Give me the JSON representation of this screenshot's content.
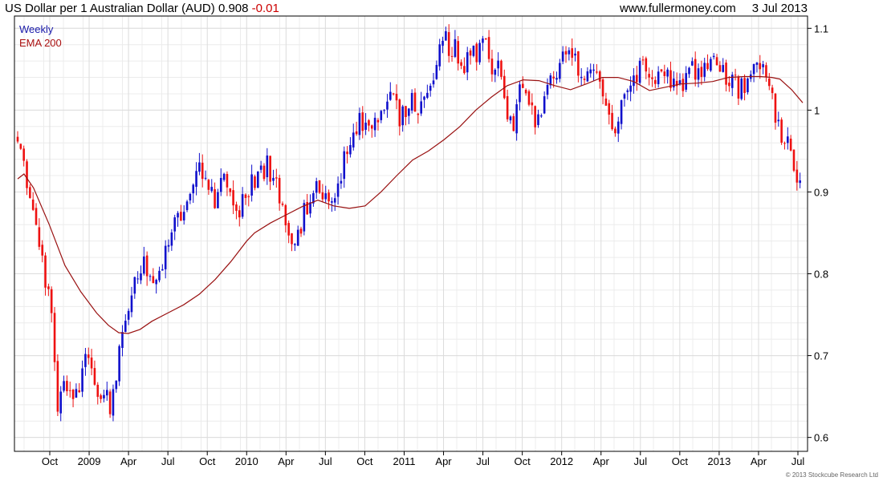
{
  "header": {
    "title": "US Dollar per 1 Australian Dollar (AUD)",
    "last": "0.908",
    "change": "-0.01",
    "website": "www.fullermoney.com",
    "date": "3 Jul 2013"
  },
  "legend": {
    "period": "Weekly",
    "indicator": "EMA 200"
  },
  "copyright": "© 2013 Stockcube Research Ltd",
  "colors": {
    "up": "#1010cc",
    "down": "#ee1111",
    "ema": "#991111",
    "grid": "#dcdcdc",
    "axis": "#000000"
  },
  "chart_data": {
    "type": "candlestick",
    "period": "Weekly",
    "y_axis": {
      "position": "right",
      "ylim": [
        0.583,
        1.115
      ],
      "ticks": [
        0.6,
        0.7,
        0.8,
        0.9,
        1.0,
        1.1
      ],
      "tick_labels": [
        "0.6",
        "0.7",
        "0.8",
        "0.9",
        "1",
        "1.1"
      ]
    },
    "x_axis": {
      "tick_labels": [
        "Oct",
        "2009",
        "Apr",
        "Jul",
        "Oct",
        "2010",
        "Apr",
        "Jul",
        "Oct",
        "2011",
        "Apr",
        "Jul",
        "Oct",
        "2012",
        "Apr",
        "Jul",
        "Oct",
        "2013",
        "Apr",
        "Jul"
      ]
    },
    "grid": true,
    "series": [
      {
        "type": "line",
        "name": "EMA 200",
        "points": [
          [
            0,
            0.916
          ],
          [
            8,
            0.922
          ],
          [
            20,
            0.905
          ],
          [
            40,
            0.86
          ],
          [
            60,
            0.81
          ],
          [
            80,
            0.778
          ],
          [
            100,
            0.752
          ],
          [
            115,
            0.737
          ],
          [
            128,
            0.728
          ],
          [
            140,
            0.727
          ],
          [
            155,
            0.732
          ],
          [
            170,
            0.742
          ],
          [
            190,
            0.752
          ],
          [
            210,
            0.762
          ],
          [
            230,
            0.775
          ],
          [
            250,
            0.793
          ],
          [
            270,
            0.815
          ],
          [
            290,
            0.84
          ],
          [
            300,
            0.85
          ],
          [
            320,
            0.862
          ],
          [
            340,
            0.872
          ],
          [
            360,
            0.882
          ],
          [
            380,
            0.89
          ],
          [
            400,
            0.883
          ],
          [
            420,
            0.88
          ],
          [
            440,
            0.883
          ],
          [
            460,
            0.9
          ],
          [
            480,
            0.92
          ],
          [
            500,
            0.939
          ],
          [
            520,
            0.95
          ],
          [
            540,
            0.964
          ],
          [
            560,
            0.98
          ],
          [
            580,
            1.0
          ],
          [
            600,
            1.016
          ],
          [
            620,
            1.03
          ],
          [
            640,
            1.037
          ],
          [
            660,
            1.036
          ],
          [
            680,
            1.03
          ],
          [
            700,
            1.025
          ],
          [
            720,
            1.032
          ],
          [
            740,
            1.04
          ],
          [
            760,
            1.04
          ],
          [
            780,
            1.035
          ],
          [
            800,
            1.024
          ],
          [
            820,
            1.028
          ],
          [
            840,
            1.032
          ],
          [
            860,
            1.033
          ],
          [
            880,
            1.035
          ],
          [
            900,
            1.04
          ],
          [
            920,
            1.041
          ],
          [
            940,
            1.041
          ],
          [
            955,
            1.04
          ],
          [
            965,
            1.038
          ],
          [
            980,
            1.025
          ],
          [
            994,
            1.009
          ]
        ]
      },
      {
        "type": "candle",
        "name": "Weekly",
        "path": [
          [
            0,
            0.97
          ],
          [
            5,
            0.965
          ],
          [
            10,
            0.92
          ],
          [
            14,
            0.895
          ],
          [
            18,
            0.87
          ],
          [
            22,
            0.86
          ],
          [
            26,
            0.84
          ],
          [
            30,
            0.822
          ],
          [
            34,
            0.805
          ],
          [
            38,
            0.775
          ],
          [
            42,
            0.755
          ],
          [
            45,
            0.705
          ],
          [
            48,
            0.665
          ],
          [
            51,
            0.64
          ],
          [
            54,
            0.65
          ],
          [
            57,
            0.665
          ],
          [
            60,
            0.665
          ],
          [
            63,
            0.658
          ],
          [
            66,
            0.66
          ],
          [
            69,
            0.645
          ],
          [
            72,
            0.64
          ],
          [
            75,
            0.65
          ],
          [
            78,
            0.66
          ],
          [
            81,
            0.67
          ],
          [
            84,
            0.69
          ],
          [
            87,
            0.705
          ],
          [
            90,
            0.69
          ],
          [
            93,
            0.672
          ],
          [
            96,
            0.675
          ],
          [
            99,
            0.665
          ],
          [
            102,
            0.66
          ],
          [
            105,
            0.65
          ],
          [
            108,
            0.652
          ],
          [
            111,
            0.645
          ],
          [
            114,
            0.648
          ],
          [
            117,
            0.642
          ],
          [
            120,
            0.648
          ],
          [
            123,
            0.662
          ],
          [
            126,
            0.69
          ],
          [
            129,
            0.712
          ],
          [
            132,
            0.725
          ],
          [
            135,
            0.735
          ],
          [
            138,
            0.738
          ],
          [
            141,
            0.76
          ],
          [
            145,
            0.78
          ],
          [
            150,
            0.805
          ],
          [
            155,
            0.812
          ],
          [
            160,
            0.808
          ],
          [
            165,
            0.79
          ],
          [
            170,
            0.785
          ],
          [
            175,
            0.8
          ],
          [
            180,
            0.812
          ],
          [
            185,
            0.822
          ],
          [
            190,
            0.835
          ],
          [
            195,
            0.85
          ],
          [
            200,
            0.86
          ],
          [
            205,
            0.868
          ],
          [
            210,
            0.88
          ],
          [
            215,
            0.898
          ],
          [
            220,
            0.918
          ],
          [
            225,
            0.928
          ],
          [
            230,
            0.932
          ],
          [
            235,
            0.925
          ],
          [
            240,
            0.915
          ],
          [
            245,
            0.902
          ],
          [
            250,
            0.892
          ],
          [
            255,
            0.9
          ],
          [
            260,
            0.918
          ],
          [
            265,
            0.92
          ],
          [
            270,
            0.905
          ],
          [
            275,
            0.885
          ],
          [
            280,
            0.87
          ],
          [
            285,
            0.885
          ],
          [
            290,
            0.895
          ],
          [
            295,
            0.905
          ],
          [
            300,
            0.918
          ],
          [
            305,
            0.922
          ],
          [
            310,
            0.925
          ],
          [
            315,
            0.932
          ],
          [
            320,
            0.925
          ],
          [
            325,
            0.915
          ],
          [
            330,
            0.9
          ],
          [
            335,
            0.88
          ],
          [
            340,
            0.855
          ],
          [
            345,
            0.838
          ],
          [
            348,
            0.828
          ],
          [
            352,
            0.835
          ],
          [
            356,
            0.85
          ],
          [
            360,
            0.868
          ],
          [
            365,
            0.88
          ],
          [
            370,
            0.892
          ],
          [
            375,
            0.91
          ],
          [
            380,
            0.915
          ],
          [
            385,
            0.905
          ],
          [
            390,
            0.895
          ],
          [
            395,
            0.885
          ],
          [
            400,
            0.89
          ],
          [
            405,
            0.905
          ],
          [
            410,
            0.925
          ],
          [
            415,
            0.945
          ],
          [
            420,
            0.96
          ],
          [
            425,
            0.975
          ],
          [
            430,
            0.985
          ],
          [
            435,
            0.99
          ],
          [
            440,
            0.985
          ],
          [
            445,
            0.978
          ],
          [
            450,
            0.975
          ],
          [
            455,
            0.982
          ],
          [
            460,
            0.995
          ],
          [
            465,
            1.005
          ],
          [
            470,
            1.012
          ],
          [
            475,
            1.01
          ],
          [
            480,
            0.998
          ],
          [
            485,
            0.99
          ],
          [
            490,
            0.995
          ],
          [
            495,
            1.005
          ],
          [
            500,
            1.012
          ],
          [
            505,
            1.002
          ],
          [
            510,
            0.995
          ],
          [
            515,
            1.008
          ],
          [
            520,
            1.025
          ],
          [
            525,
            1.045
          ],
          [
            530,
            1.06
          ],
          [
            535,
            1.075
          ],
          [
            540,
            1.088
          ],
          [
            545,
            1.08
          ],
          [
            550,
            1.072
          ],
          [
            555,
            1.078
          ],
          [
            560,
            1.065
          ],
          [
            565,
            1.058
          ],
          [
            570,
            1.068
          ],
          [
            575,
            1.072
          ],
          [
            580,
            1.065
          ],
          [
            585,
            1.075
          ],
          [
            590,
            1.09
          ],
          [
            594,
            1.098
          ],
          [
            598,
            1.06
          ],
          [
            602,
            1.04
          ],
          [
            606,
            1.048
          ],
          [
            610,
            1.06
          ],
          [
            614,
            1.035
          ],
          [
            618,
            1.01
          ],
          [
            622,
            0.985
          ],
          [
            626,
            0.975
          ],
          [
            630,
            0.99
          ],
          [
            634,
            1.03
          ],
          [
            638,
            1.04
          ],
          [
            642,
            1.03
          ],
          [
            646,
            1.02
          ],
          [
            650,
            1.01
          ],
          [
            654,
            0.99
          ],
          [
            658,
            0.98
          ],
          [
            662,
            0.99
          ],
          [
            666,
            1.01
          ],
          [
            670,
            1.02
          ],
          [
            675,
            1.03
          ],
          [
            680,
            1.045
          ],
          [
            685,
            1.06
          ],
          [
            690,
            1.075
          ],
          [
            695,
            1.08
          ],
          [
            700,
            1.072
          ],
          [
            705,
            1.06
          ],
          [
            710,
            1.055
          ],
          [
            715,
            1.045
          ],
          [
            720,
            1.04
          ],
          [
            725,
            1.045
          ],
          [
            730,
            1.04
          ],
          [
            735,
            1.035
          ],
          [
            740,
            1.025
          ],
          [
            745,
            1.005
          ],
          [
            750,
            0.99
          ],
          [
            755,
            0.975
          ],
          [
            760,
            0.985
          ],
          [
            765,
            1.0
          ],
          [
            770,
            1.015
          ],
          [
            775,
            1.03
          ],
          [
            780,
            1.042
          ],
          [
            785,
            1.05
          ],
          [
            790,
            1.058
          ],
          [
            795,
            1.052
          ],
          [
            800,
            1.045
          ],
          [
            805,
            1.038
          ],
          [
            810,
            1.046
          ],
          [
            815,
            1.055
          ],
          [
            820,
            1.05
          ],
          [
            825,
            1.04
          ],
          [
            830,
            1.028
          ],
          [
            835,
            1.03
          ],
          [
            840,
            1.035
          ],
          [
            845,
            1.038
          ],
          [
            850,
            1.045
          ],
          [
            855,
            1.052
          ],
          [
            860,
            1.048
          ],
          [
            865,
            1.042
          ],
          [
            870,
            1.045
          ],
          [
            875,
            1.05
          ],
          [
            880,
            1.055
          ],
          [
            885,
            1.058
          ],
          [
            890,
            1.05
          ],
          [
            895,
            1.042
          ],
          [
            900,
            1.04
          ],
          [
            905,
            1.035
          ],
          [
            910,
            1.03
          ],
          [
            915,
            1.025
          ],
          [
            920,
            1.028
          ],
          [
            925,
            1.035
          ],
          [
            930,
            1.045
          ],
          [
            935,
            1.05
          ],
          [
            940,
            1.055
          ],
          [
            945,
            1.045
          ],
          [
            950,
            1.03
          ],
          [
            955,
            1.01
          ],
          [
            960,
            0.985
          ],
          [
            965,
            0.97
          ],
          [
            970,
            0.96
          ],
          [
            975,
            0.955
          ],
          [
            980,
            0.935
          ],
          [
            985,
            0.92
          ],
          [
            990,
            0.912
          ],
          [
            994,
            0.908
          ]
        ]
      }
    ]
  }
}
